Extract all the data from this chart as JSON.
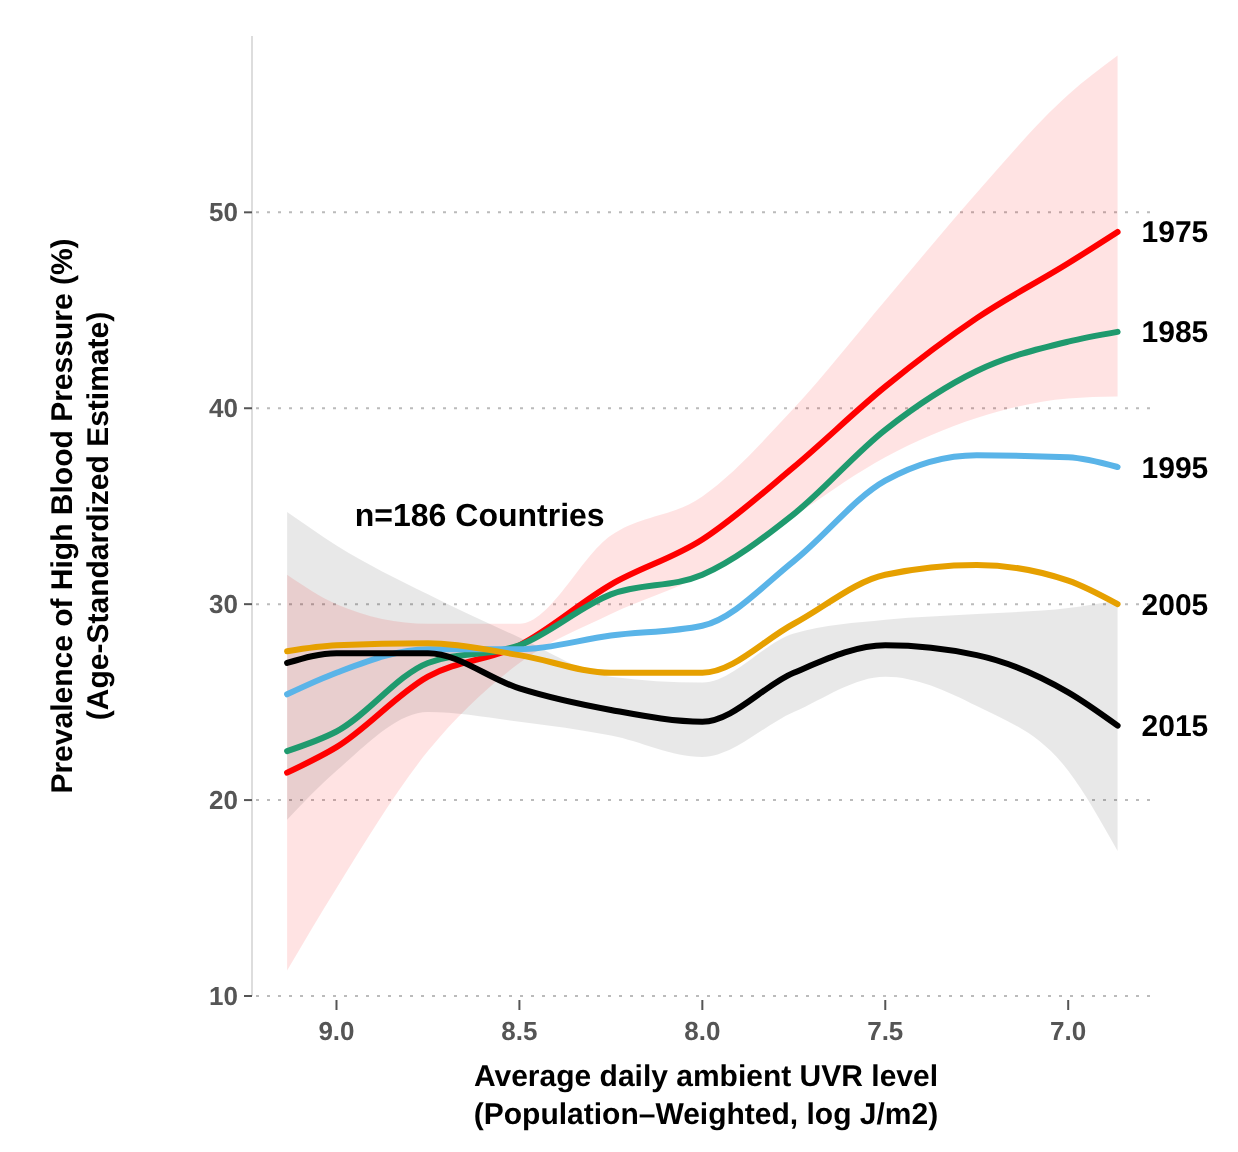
{
  "chart_data": {
    "type": "line",
    "xlabel": "Average daily ambient UVR level\n(Population–Weighted, log J/m2)",
    "ylabel": "Prevalence of High Blood Pressure (%)\n(Age-Standardized Estimate)",
    "annotations": [
      "n=186 Countries"
    ],
    "x": [
      9.135,
      9.0,
      8.75,
      8.5,
      8.25,
      8.0,
      7.75,
      7.5,
      7.25,
      7.0,
      6.865
    ],
    "xlim": [
      9.22,
      6.76
    ],
    "xticks": [
      {
        "value": 9,
        "label": "9.0"
      },
      {
        "value": 8.5,
        "label": "8.5"
      },
      {
        "value": 8,
        "label": "8.0"
      },
      {
        "value": 7.5,
        "label": "7.5"
      },
      {
        "value": 7,
        "label": "7.0"
      }
    ],
    "ylim": [
      10,
      59
    ],
    "yticks": [
      10,
      20,
      30,
      40,
      50
    ],
    "grid": "y",
    "legend": false,
    "line_style": "solid",
    "marker": "none",
    "series": [
      {
        "name": "1975",
        "color": "#ff0000",
        "values": [
          21.4,
          22.7,
          26.3,
          27.9,
          31.0,
          33.3,
          37.0,
          41.1,
          44.6,
          47.4,
          49.0
        ],
        "lower": [
          11.3,
          15.5,
          22.5,
          27.0,
          29.5,
          31.5,
          34.5,
          37.5,
          39.5,
          40.5,
          40.6
        ],
        "upper": [
          31.5,
          30.0,
          29.0,
          29.0,
          33.5,
          35.5,
          40.0,
          45.5,
          51.0,
          56.0,
          58.0
        ]
      },
      {
        "name": "1985",
        "color": "#1f9a6e",
        "values": [
          22.5,
          23.5,
          27.0,
          27.9,
          30.5,
          31.5,
          34.6,
          38.9,
          41.9,
          43.4,
          43.9
        ]
      },
      {
        "name": "1995",
        "color": "#5ab4e8",
        "values": [
          25.4,
          26.5,
          27.7,
          27.7,
          28.4,
          28.9,
          32.2,
          36.3,
          37.6,
          37.5,
          37.0
        ]
      },
      {
        "name": "2005",
        "color": "#e6a000",
        "values": [
          27.6,
          27.9,
          28.0,
          27.4,
          26.5,
          26.5,
          29.0,
          31.5,
          32.0,
          31.2,
          30.0
        ]
      },
      {
        "name": "2015",
        "color": "#000000",
        "values": [
          27.0,
          27.5,
          27.5,
          25.7,
          24.6,
          24.0,
          26.5,
          27.9,
          27.4,
          25.5,
          23.8
        ],
        "lower": [
          19.0,
          21.5,
          24.5,
          24.0,
          23.3,
          22.2,
          24.5,
          26.3,
          24.8,
          21.5,
          17.4
        ],
        "upper": [
          34.7,
          33.0,
          30.5,
          28.3,
          26.3,
          26.0,
          28.5,
          29.2,
          29.5,
          29.8,
          30.2
        ]
      }
    ]
  }
}
